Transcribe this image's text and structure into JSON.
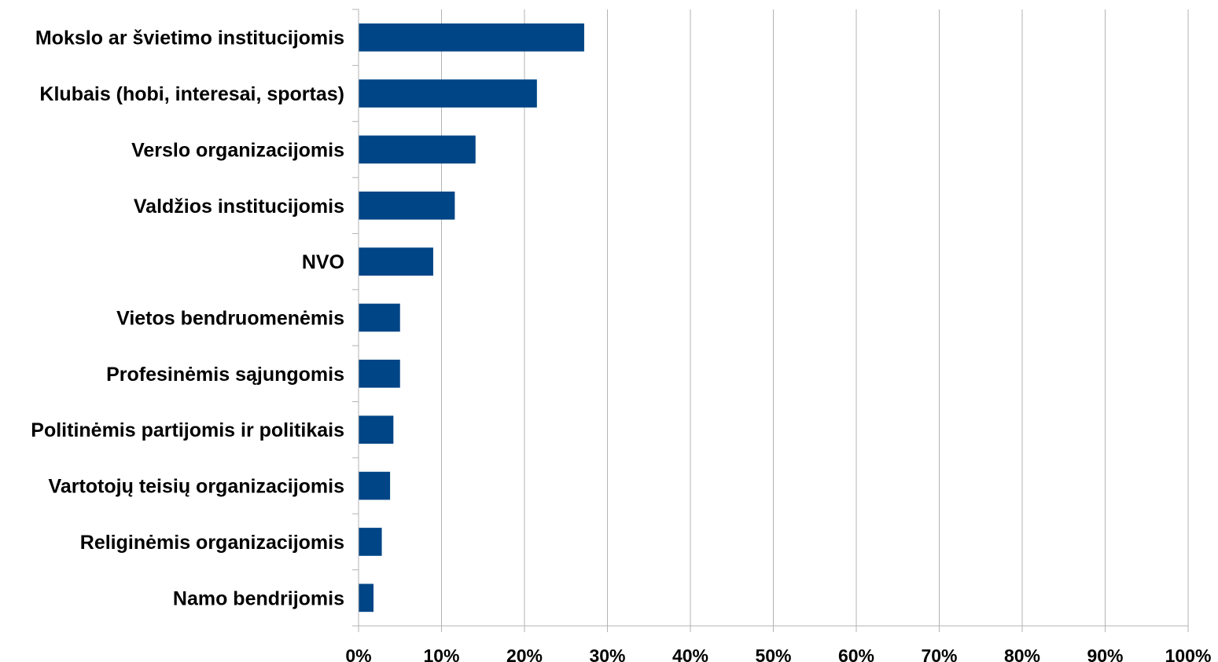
{
  "chart_data": {
    "type": "bar",
    "orientation": "horizontal",
    "title": "",
    "xlabel": "",
    "ylabel": "",
    "categories": [
      "Mokslo ar švietimo institucijomis",
      "Klubais (hobi, interesai, sportas)",
      "Verslo organizacijomis",
      "Valdžios institucijomis",
      "NVO",
      "Vietos bendruomenėmis",
      "Profesinėmis sąjungomis",
      "Politinėmis partijomis ir politikais",
      "Vartotojų teisių organizacijomis",
      "Religinėmis organizacijomis",
      "Namo bendrijomis"
    ],
    "values": [
      27.2,
      21.5,
      14.1,
      11.6,
      9.0,
      5.0,
      5.0,
      4.2,
      3.8,
      2.8,
      1.8
    ],
    "xlim": [
      0,
      100
    ],
    "x_ticks": [
      "0%",
      "10%",
      "20%",
      "30%",
      "40%",
      "50%",
      "60%",
      "70%",
      "80%",
      "90%",
      "100%"
    ],
    "grid": "vertical",
    "legend": "none",
    "bar_color": "#004586"
  }
}
